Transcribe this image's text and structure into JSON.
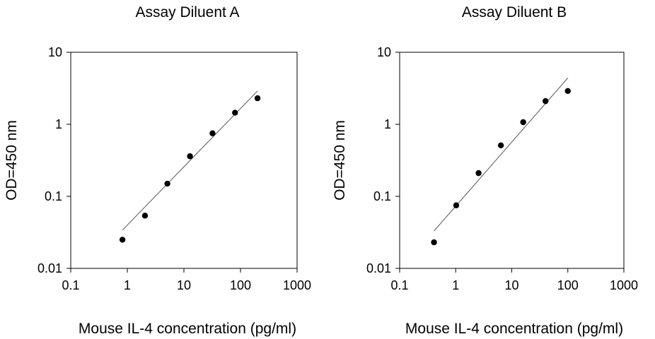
{
  "chart_data": [
    {
      "type": "scatter",
      "title": "Assay Diluent A",
      "xlabel": "Mouse IL-4 concentration (pg/ml)",
      "ylabel": "OD=450 nm",
      "x_scale": "log",
      "y_scale": "log",
      "xlim": [
        0.1,
        1000
      ],
      "ylim": [
        0.01,
        10
      ],
      "x_ticks": [
        "0.1",
        "1",
        "10",
        "100",
        "1000"
      ],
      "y_ticks": [
        "0.01",
        "0.1",
        "1",
        "10"
      ],
      "grid": false,
      "points": [
        {
          "x": 0.82,
          "y": 0.025
        },
        {
          "x": 2.05,
          "y": 0.054
        },
        {
          "x": 5.1,
          "y": 0.15
        },
        {
          "x": 12.8,
          "y": 0.36
        },
        {
          "x": 32,
          "y": 0.75
        },
        {
          "x": 80,
          "y": 1.45
        },
        {
          "x": 200,
          "y": 2.3
        }
      ],
      "fit_line": [
        {
          "x": 0.82,
          "y": 0.034
        },
        {
          "x": 200,
          "y": 2.9
        }
      ]
    },
    {
      "type": "scatter",
      "title": "Assay Diluent B",
      "xlabel": "Mouse IL-4 concentration (pg/ml)",
      "ylabel": "OD=450 nm",
      "x_scale": "log",
      "y_scale": "log",
      "xlim": [
        0.1,
        1000
      ],
      "ylim": [
        0.01,
        10
      ],
      "x_ticks": [
        "0.1",
        "1",
        "10",
        "100",
        "1000"
      ],
      "y_ticks": [
        "0.01",
        "0.1",
        "1",
        "10"
      ],
      "grid": false,
      "points": [
        {
          "x": 0.41,
          "y": 0.023
        },
        {
          "x": 1.02,
          "y": 0.075
        },
        {
          "x": 2.56,
          "y": 0.21
        },
        {
          "x": 6.4,
          "y": 0.51
        },
        {
          "x": 16,
          "y": 1.07
        },
        {
          "x": 40,
          "y": 2.1
        },
        {
          "x": 100,
          "y": 2.9
        }
      ],
      "fit_line": [
        {
          "x": 0.41,
          "y": 0.033
        },
        {
          "x": 100,
          "y": 4.4
        }
      ]
    }
  ]
}
